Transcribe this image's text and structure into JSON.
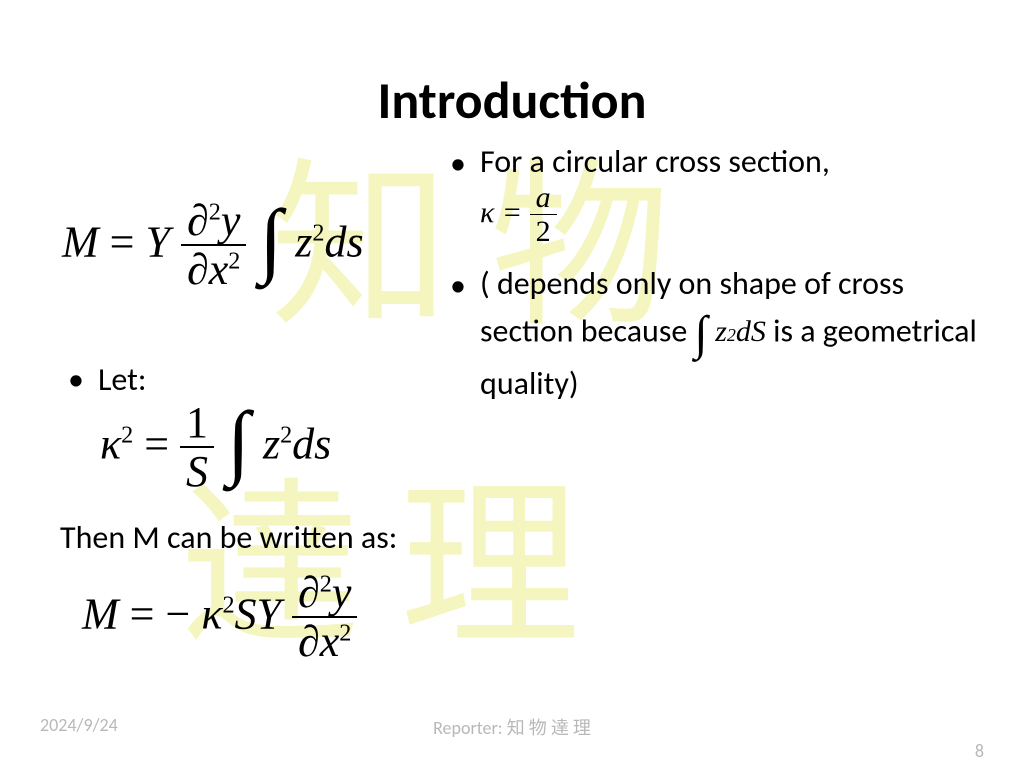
{
  "title": "Introduction",
  "watermark": {
    "line1": "知物",
    "line2": "達理",
    "color": "#f5f5c0"
  },
  "left": {
    "let_label": "Let:",
    "then_label": "Then M can be written as:"
  },
  "right": {
    "item1_text": "For a circular cross section,",
    "item2_pre": "( depends only on shape of cross section because ",
    "item2_post": " is a geometrical quality)"
  },
  "equations": {
    "eq1": {
      "lhs": "M",
      "Y": "Y",
      "partial": "∂",
      "y": "y",
      "x": "x",
      "z": "z",
      "ds": "ds"
    },
    "kappa_a": {
      "kappa": "κ",
      "a": "a",
      "two": "2"
    },
    "eq2": {
      "kappa": "κ",
      "one": "1",
      "S": "S",
      "z": "z",
      "ds": "ds"
    },
    "eq3": {
      "M": "M",
      "kappa": "κ",
      "S": "S",
      "Y": "Y",
      "partial": "∂",
      "y": "y",
      "x": "x"
    },
    "inline_int": {
      "z": "z",
      "dS": "dS"
    }
  },
  "footer": {
    "date": "2024/9/24",
    "reporter_label": "Reporter:",
    "reporter_name": "知 物 達 理",
    "page": "8"
  },
  "colors": {
    "text": "#000000",
    "footer_text": "#b8b8b8",
    "background": "#ffffff"
  },
  "typography": {
    "title_fontsize": 52,
    "body_fontsize": 32,
    "eq_fontsize": 44,
    "footer_fontsize": 18,
    "math_family": "Times New Roman",
    "ui_family": "Calibri"
  }
}
